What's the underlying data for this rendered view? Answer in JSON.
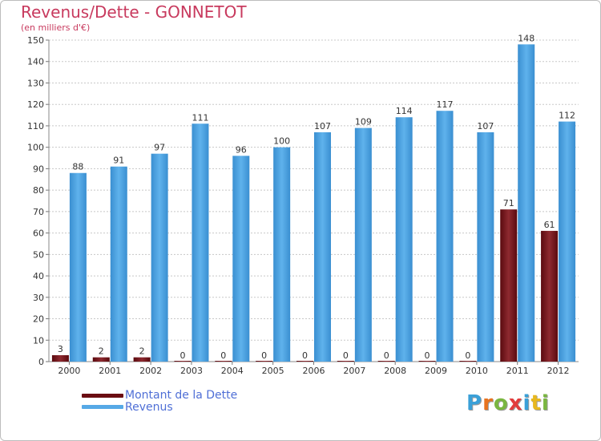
{
  "chart_data": {
    "type": "bar",
    "title": "Revenus/Dette - GONNETOT",
    "subtitle": "(en milliers d'€)",
    "categories": [
      "2000",
      "2001",
      "2002",
      "2003",
      "2004",
      "2005",
      "2006",
      "2007",
      "2008",
      "2009",
      "2010",
      "2011",
      "2012"
    ],
    "series": [
      {
        "name": "Montant de la Dette",
        "color": "#6b0d12",
        "values": [
          3,
          2,
          2,
          0,
          0,
          0,
          0,
          0,
          0,
          0,
          0,
          71,
          61
        ]
      },
      {
        "name": "Revenus",
        "color": "#56a9e6",
        "values": [
          88,
          91,
          97,
          111,
          96,
          100,
          107,
          109,
          114,
          117,
          107,
          148,
          112
        ]
      }
    ],
    "ylim": [
      0,
      150
    ],
    "yticks": [
      0,
      10,
      20,
      30,
      40,
      50,
      60,
      70,
      80,
      90,
      100,
      110,
      120,
      130,
      140,
      150
    ],
    "grid": true,
    "legend_position": "bottom-left"
  },
  "legend": {
    "debt_label": "Montant de la Dette",
    "revenue_label": "Revenus"
  },
  "logo": {
    "text": "Proxiti",
    "colors": [
      "#3aa0d8",
      "#e8731e",
      "#7ab640",
      "#e23c3c",
      "#3aa0d8",
      "#e8b81e",
      "#7ab640"
    ]
  }
}
